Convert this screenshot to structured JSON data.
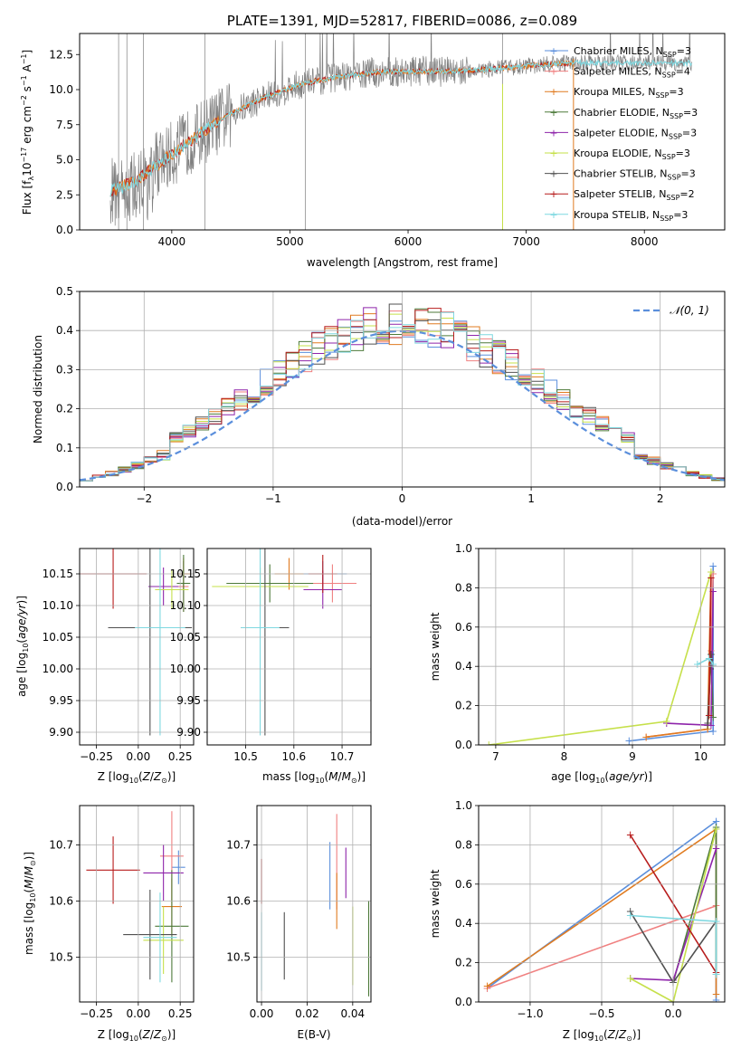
{
  "title": "PLATE=1391, MJD=52817, FIBERID=0086, z=0.089",
  "colors": {
    "Chabrier MILES": "#5b8fdc",
    "Salpeter MILES": "#f08080",
    "Kroupa MILES": "#e07b20",
    "Chabrier ELODIE": "#4d7a3a",
    "Salpeter ELODIE": "#8e24aa",
    "Kroupa ELODIE": "#c6e04a",
    "Chabrier STELIB": "#505050",
    "Salpeter STELIB": "#b71c1c",
    "Kroupa STELIB": "#7fd8e0",
    "observed": "#808080",
    "normal": "#5b8fdc"
  },
  "chart_data": [
    {
      "type": "line",
      "id": "spectrum",
      "title": "PLATE=1391, MJD=52817, FIBERID=0086, z=0.089",
      "xlabel": "wavelength [Angstrom, rest frame]",
      "ylabel": "Flux [f_λ 10^-17 erg cm^-2 s^-1 A^-1]",
      "xlim": [
        3220,
        8680
      ],
      "ylim": [
        0,
        14
      ],
      "xticks": [
        4000,
        5000,
        6000,
        7000,
        8000
      ],
      "yticks": [
        "0.0",
        "2.5",
        "5.0",
        "7.5",
        "10.0",
        "12.5"
      ],
      "legend": [
        "Chabrier MILES, N_SSP=3",
        "Salpeter MILES, N_SSP=4",
        "Kroupa MILES, N_SSP=3",
        "Chabrier ELODIE, N_SSP=3",
        "Salpeter ELODIE, N_SSP=3",
        "Kroupa ELODIE, N_SSP=3",
        "Chabrier STELIB, N_SSP=3",
        "Salpeter STELIB, N_SSP=2",
        "Kroupa STELIB, N_SSP=3"
      ],
      "legend_position": "right",
      "x": [
        3500,
        3700,
        3900,
        4100,
        4300,
        4500,
        4800,
        5100,
        5400,
        5700,
        6000,
        6300,
        6600,
        6900,
        7200,
        7400
      ],
      "model": [
        2.8,
        3.5,
        4.8,
        6.0,
        7.2,
        8.3,
        9.5,
        10.4,
        10.9,
        11.2,
        11.3,
        11.3,
        11.4,
        11.6,
        11.8,
        11.9
      ]
    },
    {
      "type": "histogram",
      "id": "residuals",
      "xlabel": "(data-model)/error",
      "ylabel": "Normed distribution",
      "xlim": [
        -2.5,
        2.5
      ],
      "ylim": [
        0,
        0.5
      ],
      "xticks": [
        "−2",
        "−1",
        "0",
        "1",
        "2"
      ],
      "yticks": [
        "0.0",
        "0.1",
        "0.2",
        "0.3",
        "0.4",
        "0.5"
      ],
      "legend": [
        "𝒩(0, 1)"
      ],
      "legend_position": "top-right",
      "bin_width": 0.1,
      "grid": true
    },
    {
      "type": "scatter",
      "id": "age_vs_Z",
      "xlabel": "Z [log10(Z/Z⊙)]",
      "ylabel": "age [log10(age/yr)]",
      "xlim": [
        -0.35,
        0.33
      ],
      "ylim": [
        9.88,
        10.19
      ],
      "xticks": [
        "−0.25",
        "0.00",
        "0.25"
      ],
      "yticks": [
        "9.90",
        "9.95",
        "10.00",
        "10.05",
        "10.10",
        "10.15"
      ],
      "grid": true,
      "points": [
        {
          "model": "Chabrier MILES",
          "x": 0.27,
          "y": 10.15,
          "xerr": 0.03,
          "yerr": 0.02
        },
        {
          "model": "Salpeter MILES",
          "x": 0.27,
          "y": 10.13,
          "xerr": 0.03,
          "yerr": 0.04
        },
        {
          "model": "Kroupa MILES",
          "x": 0.27,
          "y": 10.15,
          "xerr": 0.04,
          "yerr": 0.025
        },
        {
          "model": "Chabrier ELODIE",
          "x": 0.27,
          "y": 10.135,
          "xerr": 0.04,
          "yerr": 0.045
        },
        {
          "model": "Salpeter ELODIE",
          "x": 0.15,
          "y": 10.13,
          "xerr": 0.09,
          "yerr": 0.03
        },
        {
          "model": "Kroupa ELODIE",
          "x": 0.2,
          "y": 10.125,
          "xerr": 0.1,
          "yerr": 0.03
        },
        {
          "model": "Chabrier STELIB",
          "x": 0.07,
          "y": 10.065,
          "xerr": 0.25,
          "yerr": 0.17
        },
        {
          "model": "Salpeter STELIB",
          "x": -0.15,
          "y": 10.15,
          "xerr": 0.2,
          "yerr": 0.055
        },
        {
          "model": "Kroupa STELIB",
          "x": 0.13,
          "y": 10.065,
          "xerr": 0.15,
          "yerr": 0.17
        }
      ]
    },
    {
      "type": "scatter",
      "id": "age_vs_mass",
      "xlabel": "mass [log10(M/M⊙)]",
      "ylabel": "",
      "xlim": [
        10.42,
        10.76
      ],
      "ylim": [
        9.88,
        10.19
      ],
      "xticks": [
        "10.5",
        "10.6",
        "10.7"
      ],
      "yticks": [
        "9.90",
        "9.95",
        "10.00",
        "10.05",
        "10.10",
        "10.15"
      ],
      "grid": true,
      "points": [
        {
          "model": "Chabrier MILES",
          "x": 10.66,
          "y": 10.15,
          "xerr": 0.05,
          "yerr": 0.02
        },
        {
          "model": "Salpeter MILES",
          "x": 10.68,
          "y": 10.135,
          "xerr": 0.05,
          "yerr": 0.03
        },
        {
          "model": "Kroupa MILES",
          "x": 10.59,
          "y": 10.15,
          "xerr": 0.03,
          "yerr": 0.025
        },
        {
          "model": "Chabrier ELODIE",
          "x": 10.55,
          "y": 10.135,
          "xerr": 0.09,
          "yerr": 0.03
        },
        {
          "model": "Salpeter ELODIE",
          "x": 10.66,
          "y": 10.125,
          "xerr": 0.04,
          "yerr": 0.03
        },
        {
          "model": "Kroupa ELODIE",
          "x": 10.53,
          "y": 10.13,
          "xerr": 0.1,
          "yerr": 0.03
        },
        {
          "model": "Chabrier STELIB",
          "x": 10.54,
          "y": 10.065,
          "xerr": 0.05,
          "yerr": 0.17
        },
        {
          "model": "Salpeter STELIB",
          "x": 10.66,
          "y": 10.15,
          "xerr": 0.03,
          "yerr": 0.03
        },
        {
          "model": "Kroupa STELIB",
          "x": 10.53,
          "y": 10.065,
          "xerr": 0.04,
          "yerr": 0.17
        }
      ]
    },
    {
      "type": "line",
      "id": "mass_weight_vs_age",
      "xlabel": "age [log10(age/yr)]",
      "ylabel": "mass weight",
      "xlim": [
        6.75,
        10.35
      ],
      "ylim": [
        0,
        1
      ],
      "xticks": [
        "7",
        "8",
        "9",
        "10"
      ],
      "yticks": [
        "0.0",
        "0.2",
        "0.4",
        "0.6",
        "0.8",
        "1.0"
      ],
      "grid": true,
      "series": [
        {
          "name": "Chabrier MILES",
          "x": [
            8.95,
            10.18,
            10.18
          ],
          "y": [
            0.02,
            0.07,
            0.91
          ]
        },
        {
          "name": "Salpeter MILES",
          "x": [
            9.2,
            10.1,
            10.15,
            10.18
          ],
          "y": [
            0.04,
            0.08,
            0.48,
            0.87
          ]
        },
        {
          "name": "Kroupa MILES",
          "x": [
            9.2,
            10.1,
            10.15
          ],
          "y": [
            0.04,
            0.08,
            0.88
          ]
        },
        {
          "name": "Chabrier ELODIE",
          "x": [
            10.1,
            10.15,
            10.18
          ],
          "y": [
            0.1,
            0.46,
            0.14
          ]
        },
        {
          "name": "Salpeter ELODIE",
          "x": [
            9.5,
            10.15,
            10.18
          ],
          "y": [
            0.11,
            0.1,
            0.78
          ]
        },
        {
          "name": "Kroupa ELODIE",
          "x": [
            6.9,
            9.5,
            10.15
          ],
          "y": [
            0.0,
            0.12,
            0.88
          ]
        },
        {
          "name": "Chabrier STELIB",
          "x": [
            10.1,
            10.15,
            10.18
          ],
          "y": [
            0.11,
            0.46,
            0.4
          ]
        },
        {
          "name": "Salpeter STELIB",
          "x": [
            10.12,
            10.15
          ],
          "y": [
            0.15,
            0.85
          ]
        },
        {
          "name": "Kroupa STELIB",
          "x": [
            9.95,
            10.12,
            10.18
          ],
          "y": [
            0.41,
            0.44,
            0.41
          ]
        }
      ]
    },
    {
      "type": "scatter",
      "id": "mass_vs_Z",
      "xlabel": "Z [log10(Z/Z⊙)]",
      "ylabel": "mass [log10(M/M⊙)]",
      "xlim": [
        -0.35,
        0.33
      ],
      "ylim": [
        10.42,
        10.77
      ],
      "xticks": [
        "−0.25",
        "0.00",
        "0.25"
      ],
      "yticks": [
        "10.5",
        "10.6",
        "10.7"
      ],
      "grid": true,
      "points": [
        {
          "model": "Chabrier MILES",
          "x": 0.24,
          "y": 10.66,
          "xerr": 0.04,
          "yerr": 0.03
        },
        {
          "model": "Salpeter MILES",
          "x": 0.2,
          "y": 10.68,
          "xerr": 0.07,
          "yerr": 0.08
        },
        {
          "model": "Kroupa MILES",
          "x": 0.2,
          "y": 10.59,
          "xerr": 0.06,
          "yerr": 0.05
        },
        {
          "model": "Chabrier ELODIE",
          "x": 0.2,
          "y": 10.555,
          "xerr": 0.1,
          "yerr": 0.1
        },
        {
          "model": "Salpeter ELODIE",
          "x": 0.15,
          "y": 10.65,
          "xerr": 0.12,
          "yerr": 0.05
        },
        {
          "model": "Kroupa ELODIE",
          "x": 0.15,
          "y": 10.53,
          "xerr": 0.12,
          "yerr": 0.06
        },
        {
          "model": "Chabrier STELIB",
          "x": 0.07,
          "y": 10.54,
          "xerr": 0.16,
          "yerr": 0.08
        },
        {
          "model": "Salpeter STELIB",
          "x": -0.15,
          "y": 10.655,
          "xerr": 0.16,
          "yerr": 0.06
        },
        {
          "model": "Kroupa STELIB",
          "x": 0.13,
          "y": 10.535,
          "xerr": 0.1,
          "yerr": 0.08
        }
      ]
    },
    {
      "type": "scatter",
      "id": "mass_vs_EBV",
      "xlabel": "E(B-V)",
      "ylabel": "",
      "xlim": [
        -0.002,
        0.048
      ],
      "ylim": [
        10.42,
        10.77
      ],
      "xticks": [
        "0.00",
        "0.02",
        "0.04"
      ],
      "yticks": [
        "10.5",
        "10.6",
        "10.7"
      ],
      "grid": true,
      "points": [
        {
          "model": "Chabrier MILES",
          "x": 0.03,
          "y": 10.645,
          "xerr": 0,
          "yerr": 0.06
        },
        {
          "model": "Salpeter MILES",
          "x": 0.033,
          "y": 10.67,
          "xerr": 0,
          "yerr": 0.085
        },
        {
          "model": "Kroupa MILES",
          "x": 0.033,
          "y": 10.6,
          "xerr": 0,
          "yerr": 0.05
        },
        {
          "model": "Chabrier ELODIE",
          "x": 0.047,
          "y": 10.515,
          "xerr": 0,
          "yerr": 0.085
        },
        {
          "model": "Salpeter ELODIE",
          "x": 0.037,
          "y": 10.65,
          "xerr": 0,
          "yerr": 0.045
        },
        {
          "model": "Kroupa ELODIE",
          "x": 0.04,
          "y": 10.52,
          "xerr": 0,
          "yerr": 0.07
        },
        {
          "model": "Chabrier STELIB",
          "x": 0.01,
          "y": 10.52,
          "xerr": 0,
          "yerr": 0.06
        },
        {
          "model": "Salpeter STELIB",
          "x": 0.0,
          "y": 10.635,
          "xerr": 0,
          "yerr": 0.04
        },
        {
          "model": "Kroupa STELIB",
          "x": 0.0,
          "y": 10.51,
          "xerr": 0,
          "yerr": 0.07
        }
      ]
    },
    {
      "type": "line",
      "id": "mass_weight_vs_Z",
      "xlabel": "Z [log10(Z/Z⊙)]",
      "ylabel": "mass weight",
      "xlim": [
        -1.36,
        0.36
      ],
      "ylim": [
        0,
        1
      ],
      "xticks": [
        "−1.0",
        "−0.5",
        "0.0"
      ],
      "yticks": [
        "0.0",
        "0.2",
        "0.4",
        "0.6",
        "0.8",
        "1.0"
      ],
      "grid": true,
      "series": [
        {
          "name": "Chabrier MILES",
          "x": [
            -1.3,
            0.3,
            0.3
          ],
          "y": [
            0.07,
            0.92,
            0.01
          ]
        },
        {
          "name": "Salpeter MILES",
          "x": [
            -1.3,
            0.3
          ],
          "y": [
            0.07,
            0.49
          ]
        },
        {
          "name": "Kroupa MILES",
          "x": [
            -1.3,
            0.3,
            0.3
          ],
          "y": [
            0.08,
            0.88,
            0.04
          ]
        },
        {
          "name": "Chabrier ELODIE",
          "x": [
            0.0,
            0.3,
            0.3
          ],
          "y": [
            0.1,
            0.89,
            0.14
          ]
        },
        {
          "name": "Salpeter ELODIE",
          "x": [
            -0.3,
            0.0,
            0.3
          ],
          "y": [
            0.12,
            0.11,
            0.78
          ]
        },
        {
          "name": "Kroupa ELODIE",
          "x": [
            -0.3,
            0.0,
            0.3
          ],
          "y": [
            0.12,
            0.0,
            0.88
          ]
        },
        {
          "name": "Chabrier STELIB",
          "x": [
            -0.3,
            0.0,
            0.3
          ],
          "y": [
            0.46,
            0.1,
            0.41
          ]
        },
        {
          "name": "Salpeter STELIB",
          "x": [
            -0.3,
            0.3
          ],
          "y": [
            0.85,
            0.15
          ]
        },
        {
          "name": "Kroupa STELIB",
          "x": [
            -0.3,
            0.3,
            0.3
          ],
          "y": [
            0.44,
            0.41,
            0.14
          ]
        }
      ]
    }
  ]
}
